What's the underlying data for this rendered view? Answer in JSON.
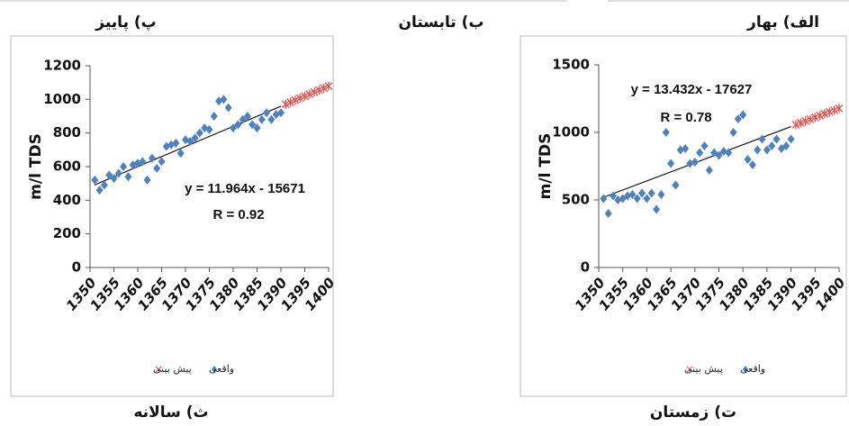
{
  "captions": [
    "پ) پاییز",
    "ب) تابستان",
    "الف) بهار",
    "ث) سالانه",
    "ت) زمستان"
  ],
  "chart_data": [
    {
      "type": "scatter",
      "y_label": "m/l TDS",
      "equation": "y = 11.964x - 15671",
      "r_text": "R = 0.92",
      "xlim": [
        1350,
        1400
      ],
      "xticks": [
        1350,
        1355,
        1360,
        1365,
        1370,
        1375,
        1380,
        1385,
        1390,
        1395,
        1400
      ],
      "ylim": [
        0,
        1200
      ],
      "yticks": [
        0,
        200,
        400,
        600,
        800,
        1000,
        1200
      ],
      "series": [
        {
          "name": "واقعی",
          "color": "#4f81bd",
          "marker": "diamond",
          "x": [
            1351,
            1352,
            1353,
            1354,
            1355,
            1356,
            1357,
            1358,
            1359,
            1360,
            1361,
            1362,
            1363,
            1364,
            1365,
            1366,
            1367,
            1368,
            1369,
            1370,
            1371,
            1372,
            1373,
            1374,
            1375,
            1376,
            1377,
            1378,
            1379,
            1380,
            1381,
            1382,
            1383,
            1384,
            1385,
            1386,
            1387,
            1388,
            1389,
            1390
          ],
          "values": [
            520,
            460,
            490,
            550,
            530,
            560,
            600,
            540,
            610,
            620,
            630,
            520,
            650,
            590,
            630,
            720,
            730,
            740,
            680,
            760,
            750,
            770,
            800,
            830,
            820,
            900,
            990,
            1000,
            950,
            830,
            850,
            880,
            900,
            850,
            830,
            880,
            920,
            880,
            910,
            920
          ]
        },
        {
          "name": "پیش بینی",
          "color": "#e0504d",
          "marker": "cross",
          "x": [
            1391,
            1392,
            1393,
            1394,
            1395,
            1396,
            1397,
            1398,
            1399,
            1400
          ],
          "values": [
            971,
            983,
            995,
            1007,
            1019,
            1031,
            1043,
            1055,
            1067,
            1079
          ]
        }
      ],
      "trend": {
        "color": "#111111",
        "x": [
          1351,
          1390
        ],
        "values": [
          492,
          959
        ]
      }
    },
    {
      "type": "scatter",
      "y_label": "m/l TDS",
      "equation": "y = 13.432x - 17627",
      "r_text": "R = 0.78",
      "xlim": [
        1350,
        1400
      ],
      "xticks": [
        1350,
        1355,
        1360,
        1365,
        1370,
        1375,
        1380,
        1385,
        1390,
        1395,
        1400
      ],
      "ylim": [
        0,
        1500
      ],
      "yticks": [
        0,
        500,
        1000,
        1500
      ],
      "series": [
        {
          "name": "واقعی",
          "color": "#4f81bd",
          "marker": "diamond",
          "x": [
            1351,
            1352,
            1353,
            1354,
            1355,
            1356,
            1357,
            1358,
            1359,
            1360,
            1361,
            1362,
            1363,
            1364,
            1365,
            1366,
            1367,
            1368,
            1369,
            1370,
            1371,
            1372,
            1373,
            1374,
            1375,
            1376,
            1377,
            1378,
            1379,
            1380,
            1381,
            1382,
            1383,
            1384,
            1385,
            1386,
            1387,
            1388,
            1389,
            1390
          ],
          "values": [
            510,
            400,
            530,
            500,
            510,
            530,
            540,
            510,
            550,
            510,
            550,
            430,
            540,
            1000,
            770,
            610,
            870,
            880,
            770,
            780,
            850,
            900,
            720,
            850,
            830,
            860,
            850,
            1000,
            1100,
            1130,
            800,
            760,
            870,
            950,
            870,
            900,
            950,
            880,
            900,
            950
          ]
        },
        {
          "name": "پیش بینی",
          "color": "#e0504d",
          "marker": "cross",
          "x": [
            1391,
            1392,
            1393,
            1394,
            1395,
            1396,
            1397,
            1398,
            1399,
            1400
          ],
          "values": [
            1057,
            1070,
            1084,
            1097,
            1111,
            1124,
            1138,
            1151,
            1164,
            1178
          ]
        }
      ],
      "trend": {
        "color": "#111111",
        "x": [
          1351,
          1390
        ],
        "values": [
          520,
          1043
        ]
      }
    }
  ]
}
